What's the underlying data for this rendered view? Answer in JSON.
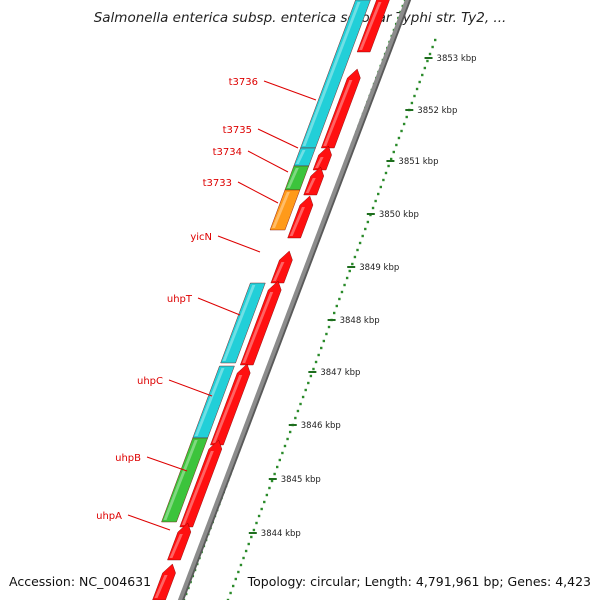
{
  "title": "Salmonella enterica subsp. enterica serovar Typhi str. Ty2, ...",
  "footer": {
    "accession": "Accession: NC_004631",
    "topology": "Topology: circular; Length: 4,791,961 bp; Genes: 4,423"
  },
  "colors": {
    "backbone": "#8c8c8c",
    "forward_gene": "#ff1010",
    "cyan_feature": "#22cfd8",
    "green_feature": "#3cc43c",
    "orange_feature": "#ff9a1a",
    "ticks": "#2a8a2a",
    "label": "#dd0000"
  },
  "scale": {
    "labels": [
      "3853 kbp",
      "3852 kbp",
      "3851 kbp",
      "3850 kbp",
      "3849 kbp",
      "3848 kbp",
      "3847 kbp",
      "3846 kbp",
      "3845 kbp",
      "3844 kbp"
    ]
  },
  "gene_labels": [
    "t3736",
    "t3735",
    "t3734",
    "t3733",
    "yicN",
    "uhpT",
    "uhpC",
    "uhpB",
    "uhpA"
  ]
}
